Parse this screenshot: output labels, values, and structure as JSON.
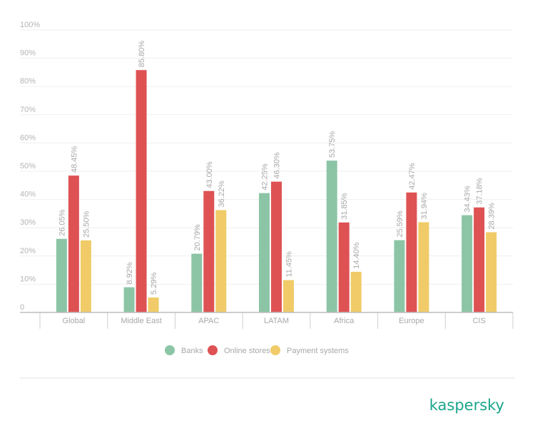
{
  "chart_data": {
    "type": "bar",
    "categories": [
      "Global",
      "Middle East",
      "APAC",
      "LATAM",
      "Africa",
      "Europe",
      "CIS"
    ],
    "series": [
      {
        "name": "Banks",
        "color": "#8cc5a6",
        "values": [
          26.05,
          8.92,
          20.79,
          42.25,
          53.75,
          25.59,
          34.43
        ]
      },
      {
        "name": "Online stores",
        "color": "#de5254",
        "values": [
          48.45,
          85.8,
          43.0,
          46.3,
          31.85,
          42.47,
          37.18
        ]
      },
      {
        "name": "Payment systems",
        "color": "#f0cb68",
        "values": [
          25.5,
          5.29,
          36.22,
          11.45,
          14.4,
          31.94,
          28.39
        ]
      }
    ],
    "data_labels": [
      [
        "26.05%",
        "8.92%",
        "20.79%",
        "42.25%",
        "53.75%",
        "25.59%",
        "34.43%"
      ],
      [
        "48.45%",
        "85.80%",
        "43.00%",
        "46.30%",
        "31.85%",
        "42.47%",
        "37.18%"
      ],
      [
        "25.50%",
        "5.29%",
        "36.22%",
        "11.45%",
        "14.40%",
        "31.94%",
        "28.39%"
      ]
    ],
    "ylim": [
      0,
      100
    ],
    "yticks": [
      "0",
      "10%",
      "20%",
      "30%",
      "40%",
      "50%",
      "60%",
      "70%",
      "80%",
      "90%",
      "100%"
    ],
    "grid": true,
    "legend_position": "bottom"
  },
  "brand": {
    "logo_text": "kaspersky",
    "color": "#1aa58a"
  }
}
